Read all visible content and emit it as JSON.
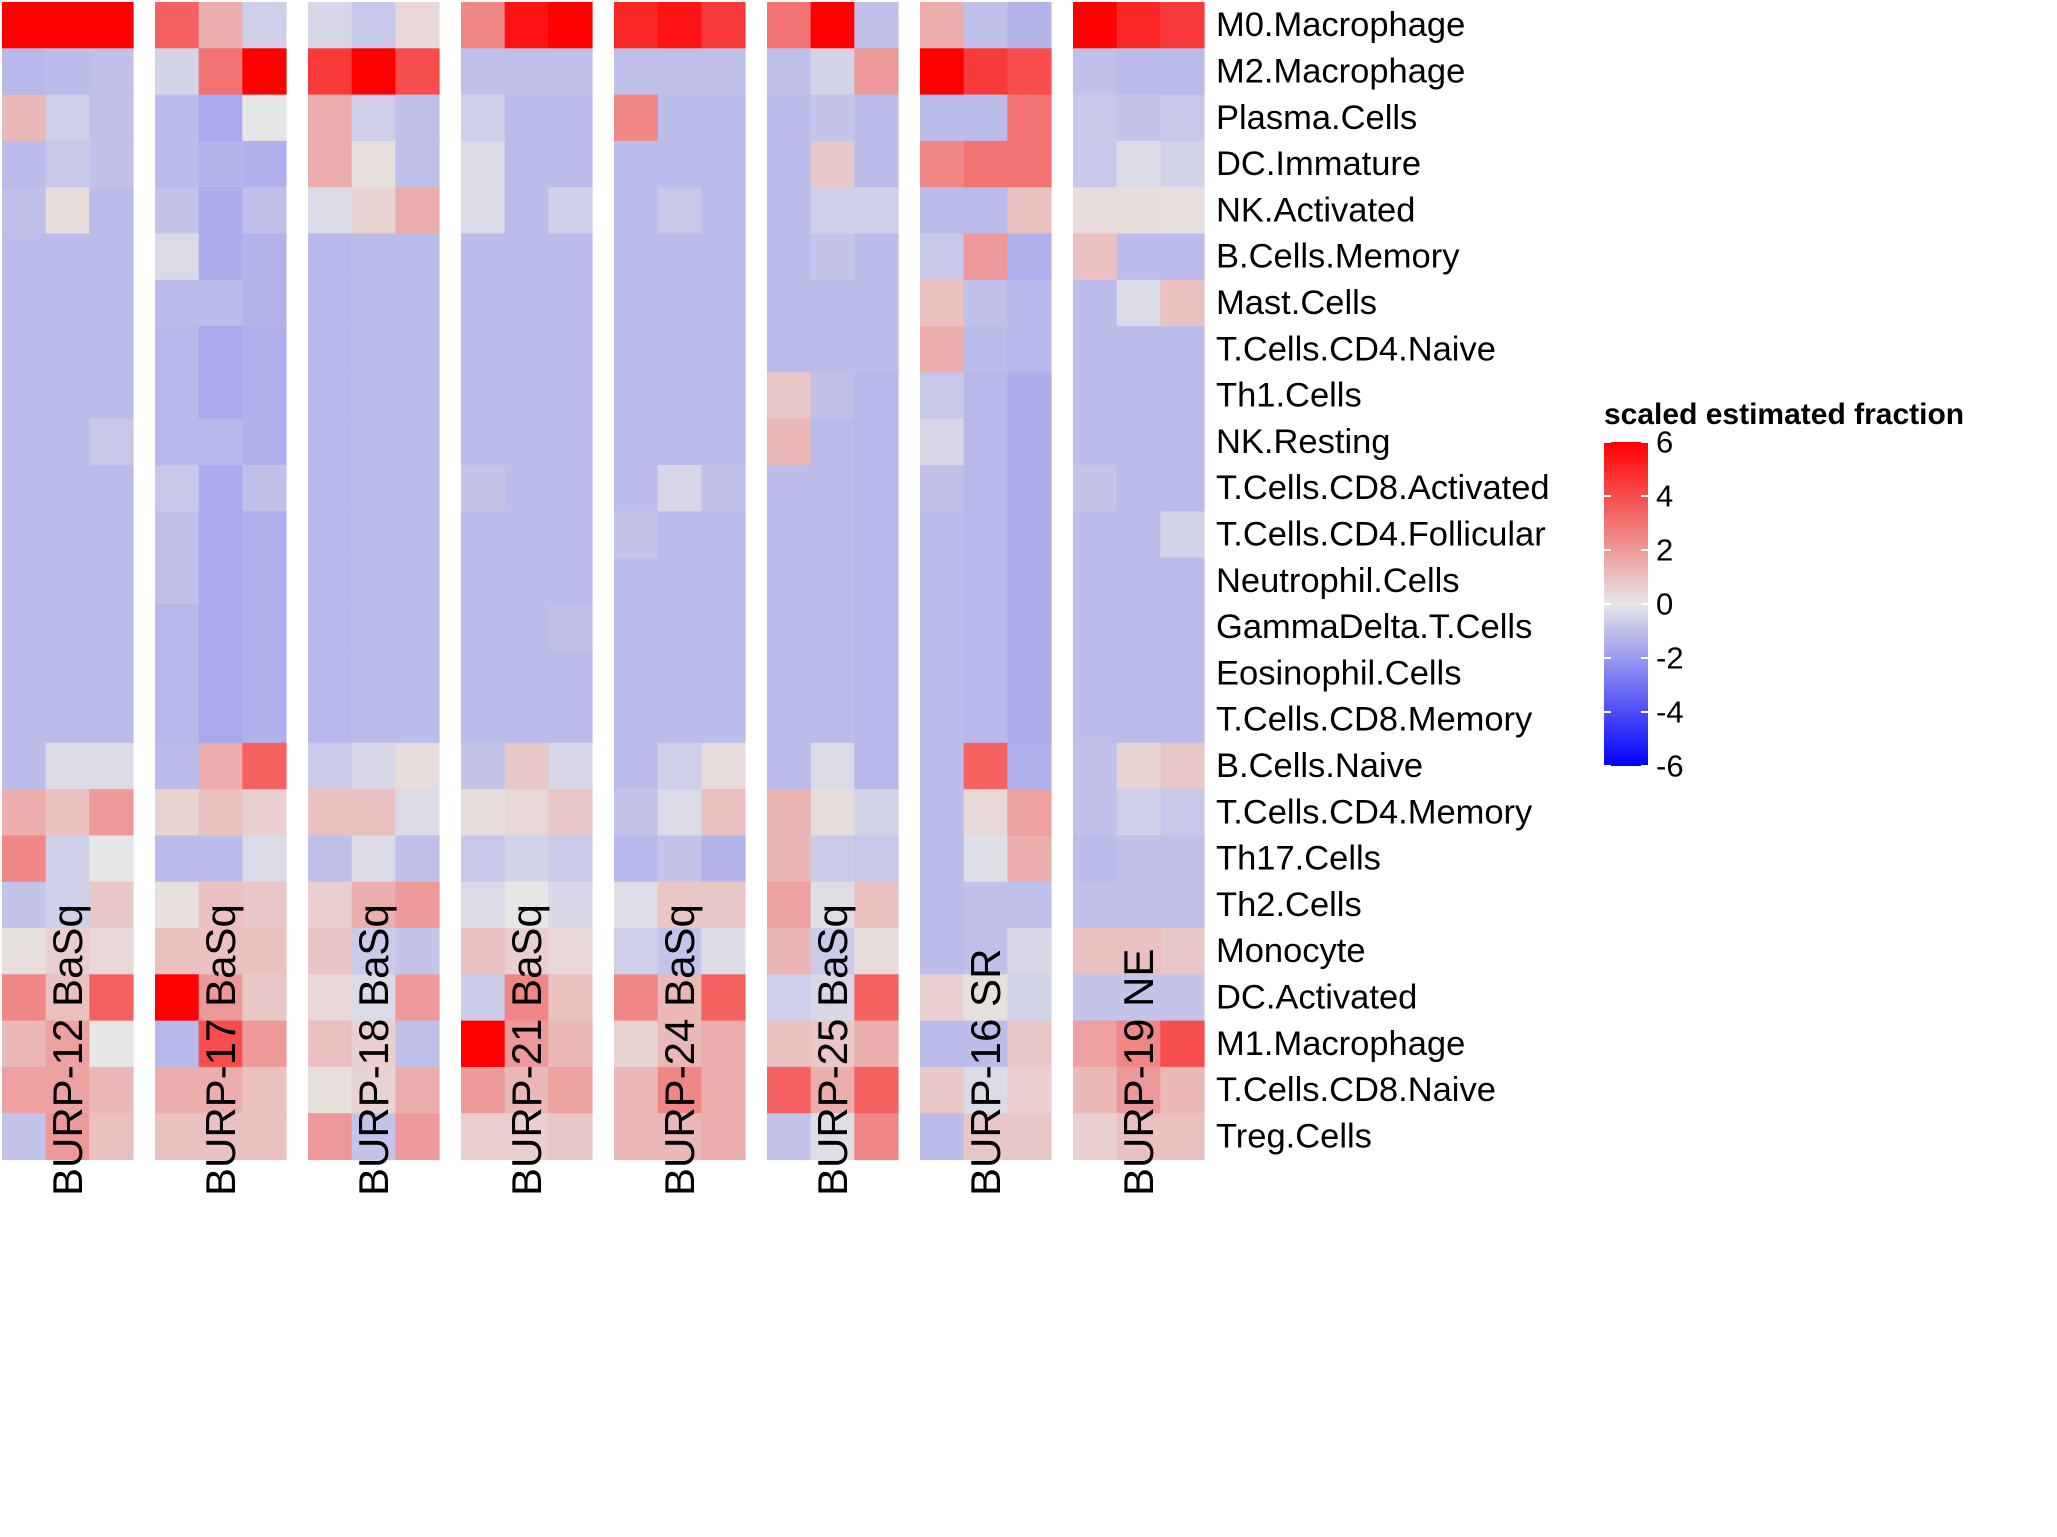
{
  "chart_data": {
    "type": "heatmap",
    "title": "",
    "rows": [
      "M0.Macrophage",
      "M2.Macrophage",
      "Plasma.Cells",
      "DC.Immature",
      "NK.Activated",
      "B.Cells.Memory",
      "Mast.Cells",
      "T.Cells.CD4.Naive",
      "Th1.Cells",
      "NK.Resting",
      "T.Cells.CD8.Activated",
      "T.Cells.CD4.Follicular",
      "Neutrophil.Cells",
      "GammaDelta.T.Cells",
      "Eosinophil.Cells",
      "T.Cells.CD8.Memory",
      "B.Cells.Naive",
      "T.Cells.CD4.Memory",
      "Th17.Cells",
      "Th2.Cells",
      "Monocyte",
      "DC.Activated",
      "M1.Macrophage",
      "T.Cells.CD8.Naive",
      "Treg.Cells"
    ],
    "groups": [
      {
        "name": "BURP-12 BaSq",
        "columns": 3
      },
      {
        "name": "BURP-17 BaSq",
        "columns": 3
      },
      {
        "name": "BURP-18 BaSq",
        "columns": 3
      },
      {
        "name": "BURP-21 BaSq",
        "columns": 3
      },
      {
        "name": "BURP-24 BaSq",
        "columns": 3
      },
      {
        "name": "BURP-25 BaSq",
        "columns": 3
      },
      {
        "name": "BURP-16 SR",
        "columns": 3
      },
      {
        "name": "BURP-19 NE",
        "columns": 3
      }
    ],
    "values": [
      [
        6.0,
        6.0,
        6.0,
        3.5,
        1.5,
        -0.6,
        -0.4,
        -0.8,
        0.4,
        2.5,
        5.5,
        6.0,
        5.0,
        5.5,
        4.5,
        3.0,
        6.0,
        -1.0,
        1.5,
        -1.0,
        -1.3,
        6.0,
        5.0,
        4.5
      ],
      [
        -1.2,
        -1.1,
        -1.0,
        -0.5,
        3.0,
        6.0,
        4.5,
        6.0,
        4.0,
        -1.0,
        -1.0,
        -1.0,
        -1.0,
        -1.0,
        -1.0,
        -1.0,
        -0.5,
        2.0,
        6.0,
        4.5,
        4.0,
        -1.0,
        -1.1,
        -1.1
      ],
      [
        1.2,
        -0.6,
        -1.0,
        -1.1,
        -1.6,
        0.0,
        1.5,
        -0.6,
        -1.0,
        -0.6,
        -1.1,
        -1.1,
        2.5,
        -1.1,
        -1.1,
        -1.1,
        -0.9,
        -1.1,
        -1.1,
        -1.1,
        3.0,
        -0.8,
        -0.9,
        -0.8
      ],
      [
        -1.1,
        -0.8,
        -1.0,
        -1.1,
        -1.3,
        -1.4,
        1.5,
        0.2,
        -1.0,
        -0.3,
        -1.1,
        -1.1,
        -1.1,
        -1.1,
        -1.1,
        -1.1,
        0.8,
        -1.1,
        2.5,
        3.0,
        3.0,
        -0.8,
        -0.3,
        -0.5
      ],
      [
        -1.0,
        0.3,
        -1.1,
        -0.9,
        -1.5,
        -1.0,
        -0.3,
        0.5,
        1.5,
        -0.3,
        -1.1,
        -0.6,
        -1.1,
        -0.8,
        -1.1,
        -1.1,
        -0.6,
        -0.6,
        -1.1,
        -1.1,
        1.0,
        0.3,
        0.3,
        0.2
      ],
      [
        -1.1,
        -1.1,
        -1.1,
        -0.3,
        -1.5,
        -1.3,
        -1.2,
        -1.1,
        -1.1,
        -1.1,
        -1.1,
        -1.1,
        -1.1,
        -1.1,
        -1.1,
        -1.1,
        -0.9,
        -1.1,
        -0.8,
        2.0,
        -1.4,
        1.0,
        -1.1,
        -1.1
      ],
      [
        -1.1,
        -1.1,
        -1.1,
        -1.1,
        -1.1,
        -1.3,
        -1.2,
        -1.1,
        -1.1,
        -1.1,
        -1.1,
        -1.1,
        -1.1,
        -1.1,
        -1.1,
        -1.1,
        -1.1,
        -1.1,
        1.0,
        -1.0,
        -1.2,
        -1.1,
        -0.3,
        1.0
      ],
      [
        -1.1,
        -1.1,
        -1.1,
        -1.2,
        -1.6,
        -1.4,
        -1.2,
        -1.1,
        -1.1,
        -1.1,
        -1.1,
        -1.1,
        -1.1,
        -1.1,
        -1.1,
        -1.1,
        -1.1,
        -1.1,
        1.5,
        -1.1,
        -1.2,
        -1.1,
        -1.1,
        -1.1
      ],
      [
        -1.1,
        -1.1,
        -1.1,
        -1.2,
        -1.6,
        -1.4,
        -1.2,
        -1.1,
        -1.1,
        -1.1,
        -1.1,
        -1.1,
        -1.1,
        -1.1,
        -1.1,
        0.8,
        -1.0,
        -1.2,
        -0.8,
        -1.2,
        -1.5,
        -1.1,
        -1.1,
        -1.1
      ],
      [
        -1.1,
        -1.1,
        -0.8,
        -1.2,
        -1.2,
        -1.4,
        -1.2,
        -1.1,
        -1.1,
        -1.1,
        -1.1,
        -1.1,
        -1.1,
        -1.1,
        -1.1,
        1.2,
        -1.1,
        -1.2,
        -0.4,
        -1.2,
        -1.5,
        -1.1,
        -1.1,
        -1.1
      ],
      [
        -1.1,
        -1.1,
        -1.1,
        -0.8,
        -1.6,
        -1.0,
        -1.2,
        -1.1,
        -1.1,
        -0.9,
        -1.1,
        -1.1,
        -1.1,
        -0.4,
        -1.0,
        -1.1,
        -1.1,
        -1.2,
        -1.0,
        -1.2,
        -1.5,
        -0.9,
        -1.1,
        -1.1
      ],
      [
        -1.1,
        -1.1,
        -1.1,
        -1.0,
        -1.6,
        -1.4,
        -1.2,
        -1.1,
        -1.1,
        -1.1,
        -1.1,
        -1.1,
        -0.9,
        -1.1,
        -1.1,
        -1.1,
        -1.1,
        -1.2,
        -1.1,
        -1.2,
        -1.5,
        -1.1,
        -1.1,
        -0.5
      ],
      [
        -1.1,
        -1.1,
        -1.1,
        -1.0,
        -1.6,
        -1.4,
        -1.2,
        -1.1,
        -1.1,
        -1.1,
        -1.1,
        -1.1,
        -1.1,
        -1.1,
        -1.1,
        -1.1,
        -1.1,
        -1.2,
        -1.1,
        -1.2,
        -1.5,
        -1.1,
        -1.1,
        -1.1
      ],
      [
        -1.1,
        -1.1,
        -1.1,
        -1.2,
        -1.6,
        -1.4,
        -1.2,
        -1.1,
        -1.1,
        -1.1,
        -1.1,
        -1.0,
        -1.1,
        -1.1,
        -1.1,
        -1.1,
        -1.1,
        -1.2,
        -1.1,
        -1.2,
        -1.5,
        -1.1,
        -1.1,
        -1.1
      ],
      [
        -1.1,
        -1.1,
        -1.1,
        -1.2,
        -1.6,
        -1.4,
        -1.2,
        -1.1,
        -1.1,
        -1.1,
        -1.1,
        -1.1,
        -1.1,
        -1.1,
        -1.1,
        -1.1,
        -1.1,
        -1.2,
        -1.1,
        -1.2,
        -1.5,
        -1.1,
        -1.1,
        -1.1
      ],
      [
        -1.1,
        -1.1,
        -1.1,
        -1.2,
        -1.6,
        -1.4,
        -1.2,
        -1.1,
        -1.1,
        -1.1,
        -1.1,
        -1.1,
        -1.1,
        -1.1,
        -1.1,
        -1.1,
        -1.1,
        -1.2,
        -1.1,
        -1.2,
        -1.5,
        -1.1,
        -1.1,
        -1.1
      ],
      [
        -1.1,
        -0.3,
        -0.3,
        -1.1,
        1.5,
        3.5,
        -0.7,
        -0.4,
        0.3,
        -0.9,
        0.8,
        -0.4,
        -1.1,
        -0.6,
        0.3,
        -1.1,
        -0.3,
        -1.2,
        -1.1,
        3.5,
        -1.4,
        -1.0,
        0.5,
        0.8
      ],
      [
        1.5,
        1.0,
        2.0,
        0.5,
        1.0,
        0.6,
        1.0,
        1.0,
        -0.3,
        0.3,
        0.4,
        0.8,
        -0.9,
        -0.3,
        1.0,
        1.3,
        0.3,
        -0.5,
        -1.1,
        0.4,
        1.8,
        -1.0,
        -0.6,
        -0.8
      ],
      [
        2.5,
        -0.6,
        0.0,
        -1.1,
        -1.1,
        -0.3,
        -1.0,
        -0.3,
        -1.0,
        -0.8,
        -0.5,
        -0.7,
        -1.2,
        -0.9,
        -1.3,
        1.3,
        -0.7,
        -0.8,
        -1.1,
        -0.2,
        1.5,
        -1.1,
        -1.0,
        -1.0
      ],
      [
        -0.9,
        -0.6,
        0.8,
        0.2,
        1.0,
        0.8,
        0.6,
        1.5,
        2.0,
        -0.3,
        0.0,
        -0.4,
        -0.2,
        0.8,
        0.8,
        1.8,
        -0.2,
        1.0,
        -1.1,
        -1.0,
        -1.0,
        -1.0,
        -1.0,
        -1.0
      ],
      [
        0.2,
        0.6,
        0.4,
        1.0,
        1.0,
        1.0,
        0.9,
        -0.7,
        -0.9,
        1.0,
        0.6,
        0.4,
        -0.6,
        -0.9,
        -0.3,
        1.3,
        -0.7,
        0.3,
        -1.1,
        -1.0,
        -0.4,
        1.0,
        1.0,
        0.8
      ],
      [
        2.5,
        1.0,
        3.5,
        6.0,
        2.0,
        0.8,
        0.4,
        -0.3,
        2.0,
        -0.7,
        2.5,
        1.0,
        2.5,
        1.2,
        3.5,
        -0.6,
        -0.4,
        3.5,
        0.6,
        0.2,
        -0.5,
        -0.9,
        -0.9,
        -0.9
      ],
      [
        1.2,
        1.8,
        0.0,
        -1.2,
        4.0,
        2.0,
        1.0,
        0.6,
        -1.0,
        6.0,
        2.0,
        1.2,
        0.5,
        1.2,
        1.5,
        1.0,
        0.8,
        1.5,
        -1.1,
        -1.1,
        0.8,
        1.8,
        2.5,
        4.0
      ],
      [
        1.8,
        1.8,
        1.2,
        1.5,
        1.5,
        1.0,
        0.2,
        0.5,
        1.5,
        2.0,
        1.2,
        1.8,
        1.2,
        2.5,
        1.5,
        3.5,
        1.5,
        3.5,
        0.8,
        -0.3,
        0.6,
        1.2,
        2.0,
        1.2
      ],
      [
        -0.9,
        2.0,
        1.0,
        1.0,
        1.0,
        1.0,
        2.0,
        -0.9,
        2.0,
        0.6,
        0.6,
        0.8,
        1.2,
        1.2,
        1.5,
        -0.9,
        -0.2,
        2.5,
        -1.1,
        0.8,
        0.8,
        0.6,
        1.0,
        1.0
      ]
    ],
    "legend": {
      "title": "scaled estimated fraction",
      "ticks": [
        "6",
        "4",
        "2",
        "0",
        "-2",
        "-4",
        "-6"
      ],
      "range": [
        -6,
        6
      ],
      "colors": {
        "low": "#0000ff",
        "mid": "#e6e6e6",
        "high": "#ff0000"
      }
    }
  }
}
